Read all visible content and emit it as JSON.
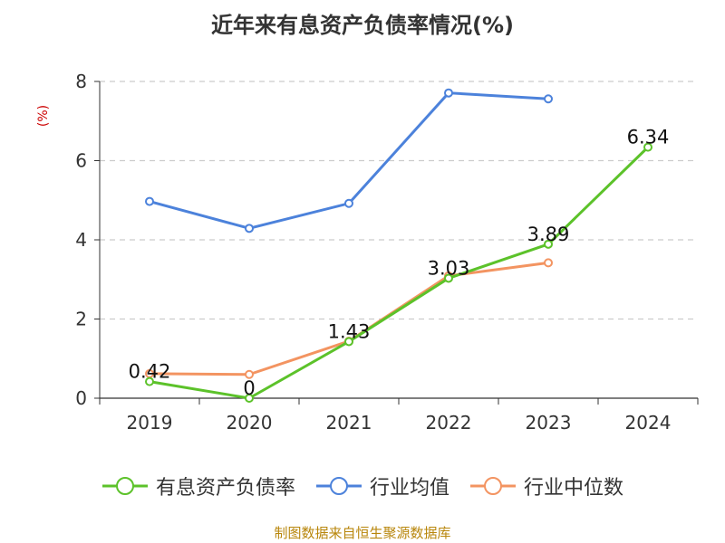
{
  "title": "近年来有息资产负债率情况(%)",
  "footer": "制图数据来自恒生聚源数据库",
  "colors": {
    "series_1": "#5cc22a",
    "series_2": "#4c82db",
    "series_3": "#f39461",
    "ylabel": "#cc0000",
    "grid": "#cccccc",
    "axis": "#333333"
  },
  "chart_data": {
    "type": "line",
    "title": "近年来有息资产负债率情况(%)",
    "ylabel": "(%)",
    "categories": [
      "2019",
      "2020",
      "2021",
      "2022",
      "2023",
      "2024"
    ],
    "ylim": [
      0,
      8
    ],
    "yticks": [
      0,
      2,
      4,
      6,
      8
    ],
    "ytick_labels": [
      "0",
      "2",
      "4",
      "6",
      "8"
    ],
    "grid": "horizontal-dashed",
    "legend_position": "bottom",
    "series": [
      {
        "name": "有息资产负债率",
        "color_key": "series_1",
        "values": [
          0.42,
          0,
          1.43,
          3.03,
          3.89,
          6.34
        ],
        "labels": [
          "0.42",
          "0",
          "1.43",
          "3.03",
          "3.89",
          "6.34"
        ]
      },
      {
        "name": "行业均值",
        "color_key": "series_2",
        "values": [
          4.97,
          4.29,
          4.92,
          7.71,
          7.56,
          null
        ]
      },
      {
        "name": "行业中位数",
        "color_key": "series_3",
        "values": [
          0.62,
          0.6,
          1.44,
          3.09,
          3.42,
          null
        ]
      }
    ]
  }
}
